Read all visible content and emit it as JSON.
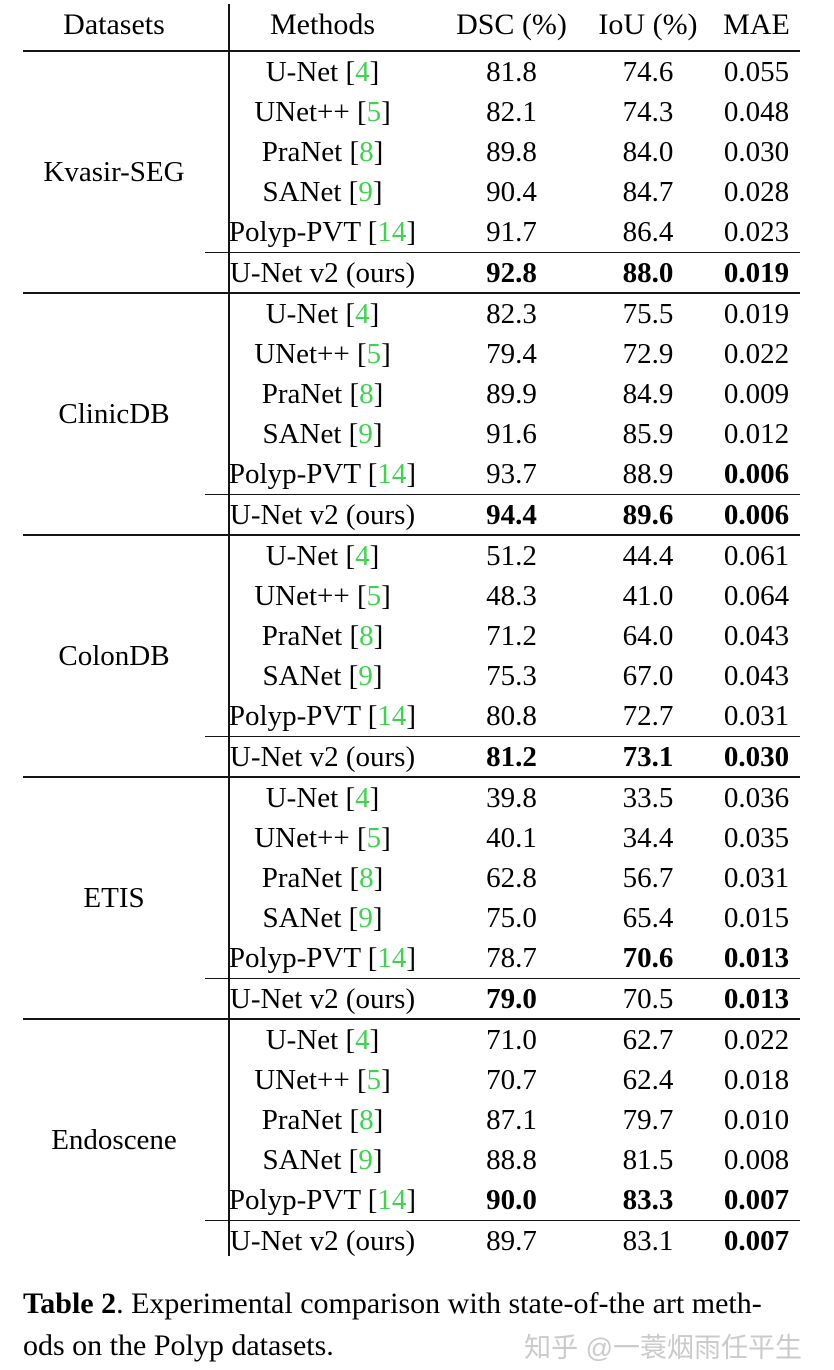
{
  "colors": {
    "citation_green": "#3dd54d",
    "text_black": "#000000",
    "rule_black": "#141414",
    "watermark_gray": "#cbcbcb",
    "background": "#ffffff"
  },
  "table": {
    "column_headers": [
      "Datasets",
      "Methods",
      "DSC (%)",
      "IoU (%)",
      "MAE"
    ],
    "citation_brackets": {
      "open": "[",
      "close": "]"
    },
    "sections": [
      {
        "dataset": "Kvasir-SEG",
        "rows": [
          {
            "method": "U-Net",
            "cite": "4",
            "dsc": "81.8",
            "iou": "74.6",
            "mae": "0.055",
            "dsc_bold": false,
            "iou_bold": false,
            "mae_bold": false,
            "is_ours": false
          },
          {
            "method": "UNet++",
            "cite": "5",
            "dsc": "82.1",
            "iou": "74.3",
            "mae": "0.048",
            "dsc_bold": false,
            "iou_bold": false,
            "mae_bold": false,
            "is_ours": false
          },
          {
            "method": "PraNet",
            "cite": "8",
            "dsc": "89.8",
            "iou": "84.0",
            "mae": "0.030",
            "dsc_bold": false,
            "iou_bold": false,
            "mae_bold": false,
            "is_ours": false
          },
          {
            "method": "SANet",
            "cite": "9",
            "dsc": "90.4",
            "iou": "84.7",
            "mae": "0.028",
            "dsc_bold": false,
            "iou_bold": false,
            "mae_bold": false,
            "is_ours": false
          },
          {
            "method": "Polyp-PVT",
            "cite": "14",
            "dsc": "91.7",
            "iou": "86.4",
            "mae": "0.023",
            "dsc_bold": false,
            "iou_bold": false,
            "mae_bold": false,
            "is_ours": false
          },
          {
            "method": "U-Net v2 (ours)",
            "cite": null,
            "dsc": "92.8",
            "iou": "88.0",
            "mae": "0.019",
            "dsc_bold": true,
            "iou_bold": true,
            "mae_bold": true,
            "is_ours": true
          }
        ]
      },
      {
        "dataset": "ClinicDB",
        "rows": [
          {
            "method": "U-Net",
            "cite": "4",
            "dsc": "82.3",
            "iou": "75.5",
            "mae": "0.019",
            "dsc_bold": false,
            "iou_bold": false,
            "mae_bold": false,
            "is_ours": false
          },
          {
            "method": "UNet++",
            "cite": "5",
            "dsc": "79.4",
            "iou": "72.9",
            "mae": "0.022",
            "dsc_bold": false,
            "iou_bold": false,
            "mae_bold": false,
            "is_ours": false
          },
          {
            "method": "PraNet",
            "cite": "8",
            "dsc": "89.9",
            "iou": "84.9",
            "mae": "0.009",
            "dsc_bold": false,
            "iou_bold": false,
            "mae_bold": false,
            "is_ours": false
          },
          {
            "method": "SANet",
            "cite": "9",
            "dsc": "91.6",
            "iou": "85.9",
            "mae": "0.012",
            "dsc_bold": false,
            "iou_bold": false,
            "mae_bold": false,
            "is_ours": false
          },
          {
            "method": "Polyp-PVT",
            "cite": "14",
            "dsc": "93.7",
            "iou": "88.9",
            "mae": "0.006",
            "dsc_bold": false,
            "iou_bold": false,
            "mae_bold": true,
            "is_ours": false
          },
          {
            "method": "U-Net v2 (ours)",
            "cite": null,
            "dsc": "94.4",
            "iou": "89.6",
            "mae": "0.006",
            "dsc_bold": true,
            "iou_bold": true,
            "mae_bold": true,
            "is_ours": true
          }
        ]
      },
      {
        "dataset": "ColonDB",
        "rows": [
          {
            "method": "U-Net",
            "cite": "4",
            "dsc": "51.2",
            "iou": "44.4",
            "mae": "0.061",
            "dsc_bold": false,
            "iou_bold": false,
            "mae_bold": false,
            "is_ours": false
          },
          {
            "method": "UNet++",
            "cite": "5",
            "dsc": "48.3",
            "iou": "41.0",
            "mae": "0.064",
            "dsc_bold": false,
            "iou_bold": false,
            "mae_bold": false,
            "is_ours": false
          },
          {
            "method": "PraNet",
            "cite": "8",
            "dsc": "71.2",
            "iou": "64.0",
            "mae": "0.043",
            "dsc_bold": false,
            "iou_bold": false,
            "mae_bold": false,
            "is_ours": false
          },
          {
            "method": "SANet",
            "cite": "9",
            "dsc": "75.3",
            "iou": "67.0",
            "mae": "0.043",
            "dsc_bold": false,
            "iou_bold": false,
            "mae_bold": false,
            "is_ours": false
          },
          {
            "method": "Polyp-PVT",
            "cite": "14",
            "dsc": "80.8",
            "iou": "72.7",
            "mae": "0.031",
            "dsc_bold": false,
            "iou_bold": false,
            "mae_bold": false,
            "is_ours": false
          },
          {
            "method": "U-Net v2 (ours)",
            "cite": null,
            "dsc": "81.2",
            "iou": "73.1",
            "mae": "0.030",
            "dsc_bold": true,
            "iou_bold": true,
            "mae_bold": true,
            "is_ours": true
          }
        ]
      },
      {
        "dataset": "ETIS",
        "rows": [
          {
            "method": "U-Net",
            "cite": "4",
            "dsc": "39.8",
            "iou": "33.5",
            "mae": "0.036",
            "dsc_bold": false,
            "iou_bold": false,
            "mae_bold": false,
            "is_ours": false
          },
          {
            "method": "UNet++",
            "cite": "5",
            "dsc": "40.1",
            "iou": "34.4",
            "mae": "0.035",
            "dsc_bold": false,
            "iou_bold": false,
            "mae_bold": false,
            "is_ours": false
          },
          {
            "method": "PraNet",
            "cite": "8",
            "dsc": "62.8",
            "iou": "56.7",
            "mae": "0.031",
            "dsc_bold": false,
            "iou_bold": false,
            "mae_bold": false,
            "is_ours": false
          },
          {
            "method": "SANet",
            "cite": "9",
            "dsc": "75.0",
            "iou": "65.4",
            "mae": "0.015",
            "dsc_bold": false,
            "iou_bold": false,
            "mae_bold": false,
            "is_ours": false
          },
          {
            "method": "Polyp-PVT",
            "cite": "14",
            "dsc": "78.7",
            "iou": "70.6",
            "mae": "0.013",
            "dsc_bold": false,
            "iou_bold": true,
            "mae_bold": true,
            "is_ours": false
          },
          {
            "method": "U-Net v2 (ours)",
            "cite": null,
            "dsc": "79.0",
            "iou": "70.5",
            "mae": "0.013",
            "dsc_bold": true,
            "iou_bold": false,
            "mae_bold": true,
            "is_ours": true
          }
        ]
      },
      {
        "dataset": "Endoscene",
        "rows": [
          {
            "method": "U-Net",
            "cite": "4",
            "dsc": "71.0",
            "iou": "62.7",
            "mae": "0.022",
            "dsc_bold": false,
            "iou_bold": false,
            "mae_bold": false,
            "is_ours": false
          },
          {
            "method": "UNet++",
            "cite": "5",
            "dsc": "70.7",
            "iou": "62.4",
            "mae": "0.018",
            "dsc_bold": false,
            "iou_bold": false,
            "mae_bold": false,
            "is_ours": false
          },
          {
            "method": "PraNet",
            "cite": "8",
            "dsc": "87.1",
            "iou": "79.7",
            "mae": "0.010",
            "dsc_bold": false,
            "iou_bold": false,
            "mae_bold": false,
            "is_ours": false
          },
          {
            "method": "SANet",
            "cite": "9",
            "dsc": "88.8",
            "iou": "81.5",
            "mae": "0.008",
            "dsc_bold": false,
            "iou_bold": false,
            "mae_bold": false,
            "is_ours": false
          },
          {
            "method": "Polyp-PVT",
            "cite": "14",
            "dsc": "90.0",
            "iou": "83.3",
            "mae": "0.007",
            "dsc_bold": true,
            "iou_bold": true,
            "mae_bold": true,
            "is_ours": false
          },
          {
            "method": "U-Net v2 (ours)",
            "cite": null,
            "dsc": "89.7",
            "iou": "83.1",
            "mae": "0.007",
            "dsc_bold": false,
            "iou_bold": false,
            "mae_bold": true,
            "is_ours": true
          }
        ]
      }
    ]
  },
  "caption": {
    "label": "Table 2",
    "rest_line1": ". Experimental comparison with state-of-the art meth-",
    "line2": "ods on the Polyp datasets."
  },
  "watermark": {
    "text": "知乎 @一蓑烟雨任平生"
  }
}
